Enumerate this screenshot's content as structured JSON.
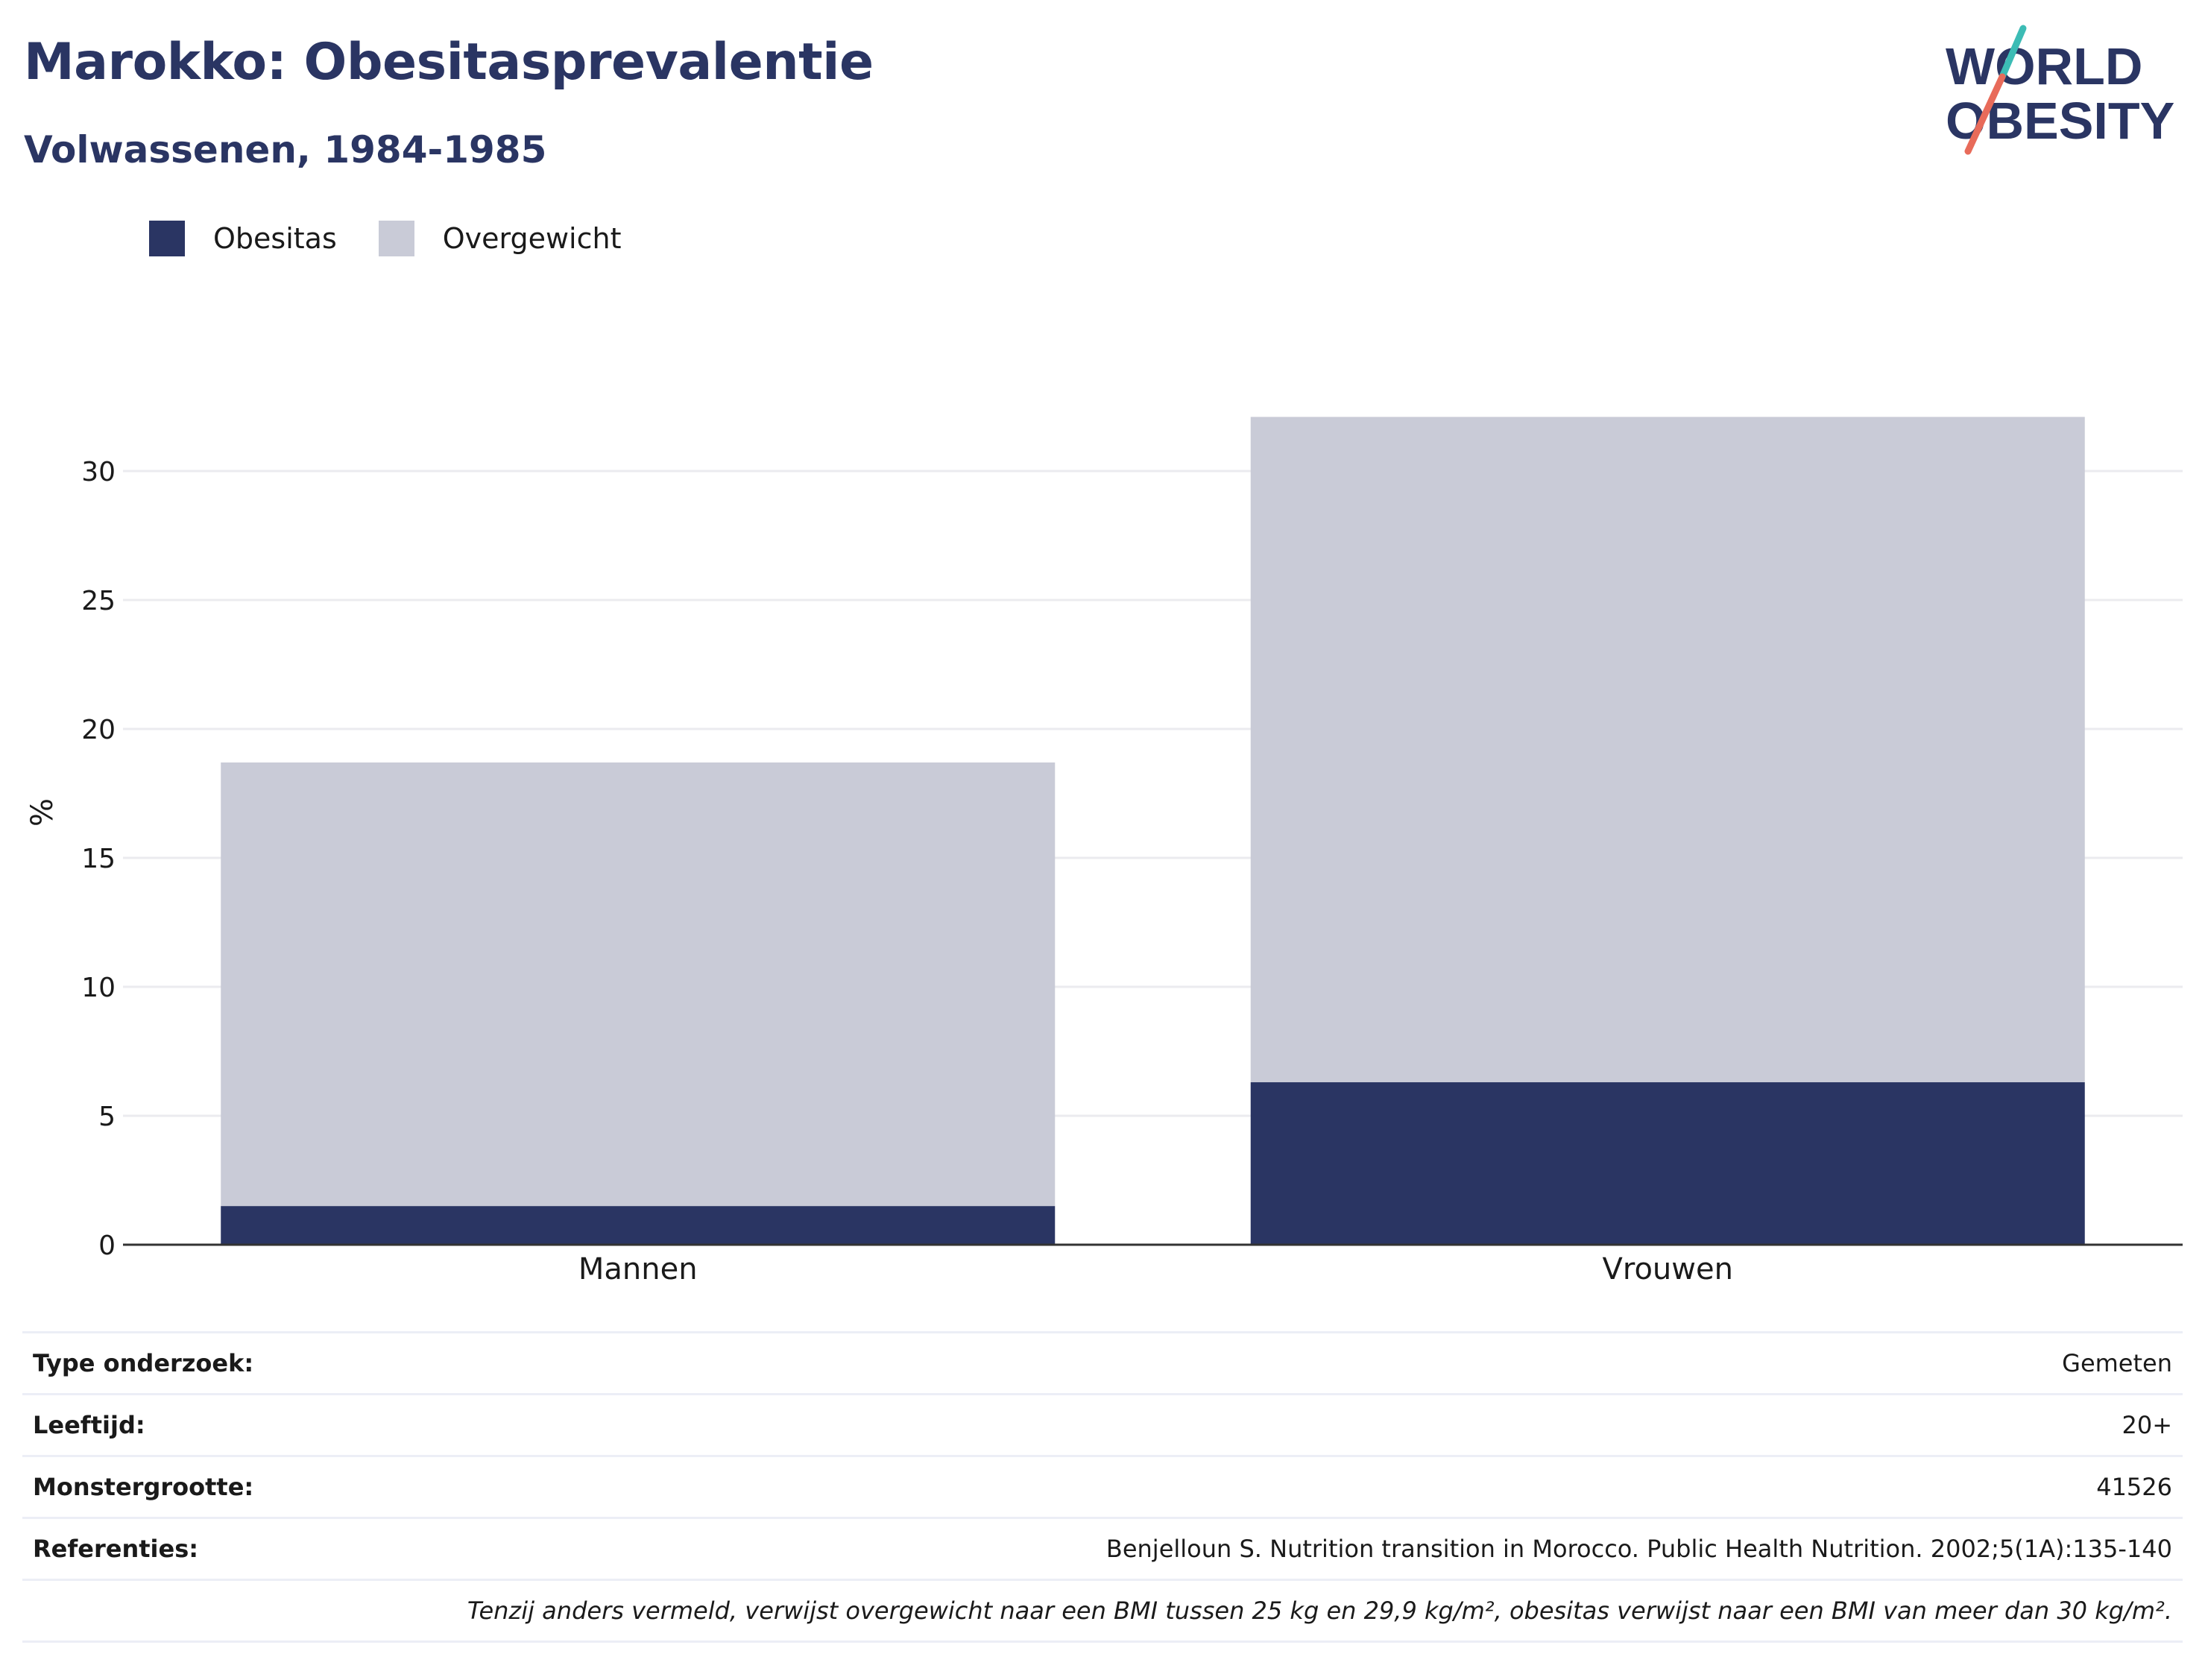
{
  "header": {
    "title": "Marokko: Obesitasprevalentie",
    "subtitle": "Volwassenen, 1984-1985"
  },
  "logo": {
    "line1": "WORLD",
    "line2": "OBESITY",
    "colors": {
      "text": "#2a3563",
      "slash_top": "#3cbcb5",
      "slash_bottom": "#e86b5a"
    }
  },
  "legend": {
    "items": [
      {
        "label": "Obesitas",
        "color": "#2a3563"
      },
      {
        "label": "Overgewicht",
        "color": "#c9cbd7"
      }
    ]
  },
  "chart_data": {
    "type": "bar",
    "stacked": true,
    "categories": [
      "Mannen",
      "Vrouwen"
    ],
    "series": [
      {
        "name": "Obesitas",
        "color": "#2a3563",
        "values": [
          1.5,
          6.3
        ]
      },
      {
        "name": "Overgewicht",
        "color": "#c9cbd7",
        "values": [
          17.2,
          25.8
        ]
      }
    ],
    "ylabel": "%",
    "ylim": [
      0,
      35
    ],
    "yticks": [
      0,
      5,
      10,
      15,
      20,
      25,
      30
    ],
    "grid": true,
    "legend_position": "top-left"
  },
  "info_table": {
    "rows": [
      {
        "key": "Type onderzoek:",
        "value": "Gemeten"
      },
      {
        "key": "Leeftijd:",
        "value": "20+"
      },
      {
        "key": "Monstergrootte:",
        "value": "41526"
      },
      {
        "key": "Referenties:",
        "value": "Benjelloun S. Nutrition transition in Morocco. Public Health Nutrition. 2002;5(1A):135-140"
      }
    ],
    "note": "Tenzij anders vermeld, verwijst overgewicht naar een BMI tussen 25 kg en 29,9 kg/m², obesitas verwijst naar een BMI van meer dan 30 kg/m²."
  }
}
